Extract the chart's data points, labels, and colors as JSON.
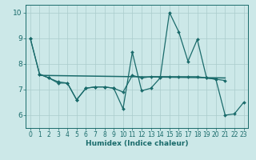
{
  "title": "",
  "xlabel": "Humidex (Indice chaleur)",
  "bg_color": "#cce8e8",
  "line_color": "#1a6b6b",
  "grid_color": "#aacccc",
  "xlim": [
    -0.5,
    23.5
  ],
  "ylim": [
    5.5,
    10.3
  ],
  "xticks": [
    0,
    1,
    2,
    3,
    4,
    5,
    6,
    7,
    8,
    9,
    10,
    11,
    12,
    13,
    14,
    15,
    16,
    17,
    18,
    19,
    20,
    21,
    22,
    23
  ],
  "yticks": [
    6,
    7,
    8,
    9,
    10
  ],
  "series1_x": [
    0,
    1,
    2,
    3,
    4,
    5,
    6,
    7,
    8,
    9,
    10,
    11,
    12,
    13,
    14,
    15,
    16,
    17,
    18,
    19,
    20,
    21,
    22,
    23
  ],
  "series1_y": [
    9.0,
    7.6,
    7.45,
    7.25,
    7.25,
    6.6,
    7.05,
    7.1,
    7.1,
    7.05,
    6.25,
    8.45,
    6.95,
    7.05,
    7.45,
    10.0,
    9.25,
    8.1,
    8.95,
    7.45,
    7.4,
    6.0,
    6.05,
    6.5
  ],
  "series2_x": [
    0,
    1,
    2,
    3,
    4,
    5,
    6,
    7,
    8,
    9,
    10,
    11,
    12,
    13,
    14,
    15,
    16,
    17,
    18,
    19,
    20,
    21
  ],
  "series2_y": [
    9.0,
    7.6,
    7.45,
    7.3,
    7.25,
    6.6,
    7.05,
    7.1,
    7.1,
    7.05,
    6.9,
    7.55,
    7.45,
    7.5,
    7.5,
    7.5,
    7.5,
    7.5,
    7.5,
    7.45,
    7.4,
    7.35
  ],
  "trend_x": [
    1,
    21
  ],
  "trend_y": [
    7.55,
    7.45
  ],
  "xlabel_fontsize": 6.5,
  "tick_fontsize": 5.5,
  "ytick_fontsize": 6.5,
  "linewidth": 0.9,
  "markersize": 2.0
}
